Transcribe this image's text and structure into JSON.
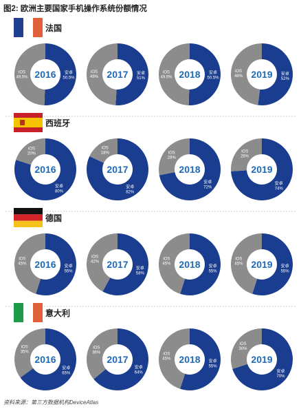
{
  "title": "图2: 欧洲主要国家手机操作系统份额情况",
  "source": "资料来源：第三方数据机构DeviceAtlas",
  "colors": {
    "android": "#1a3d8f",
    "ios": "#8c8c8c",
    "year_text": "#1e6ab8",
    "divider": "#bfbfbf"
  },
  "chart_data": [
    {
      "type": "pie",
      "country": "法国",
      "flag": "france",
      "years": [
        {
          "year": "2016",
          "ios_label": "iOS",
          "ios_pct": "49.5%",
          "android_label": "安卓",
          "android_pct": "50.5%",
          "android": 50.5
        },
        {
          "year": "2017",
          "ios_label": "iOS",
          "ios_pct": "49%",
          "android_label": "安卓",
          "android_pct": "51%",
          "android": 51
        },
        {
          "year": "2018",
          "ios_label": "iOS",
          "ios_pct": "49.5%",
          "android_label": "安卓",
          "android_pct": "50.5%",
          "android": 50.5
        },
        {
          "year": "2019",
          "ios_label": "iOS",
          "ios_pct": "48%",
          "android_label": "安卓",
          "android_pct": "52%",
          "android": 52
        }
      ]
    },
    {
      "type": "pie",
      "country": "西班牙",
      "flag": "spain",
      "years": [
        {
          "year": "2016",
          "ios_label": "iOS",
          "ios_pct": "20%",
          "android_label": "安卓",
          "android_pct": "80%",
          "android": 80
        },
        {
          "year": "2017",
          "ios_label": "iOS",
          "ios_pct": "18%",
          "android_label": "安卓",
          "android_pct": "82%",
          "android": 82
        },
        {
          "year": "2018",
          "ios_label": "iOS",
          "ios_pct": "28%",
          "android_label": "安卓",
          "android_pct": "72%",
          "android": 72
        },
        {
          "year": "2019",
          "ios_label": "iOS",
          "ios_pct": "26%",
          "android_label": "安卓",
          "android_pct": "74%",
          "android": 74
        }
      ]
    },
    {
      "type": "pie",
      "country": "德国",
      "flag": "germany",
      "years": [
        {
          "year": "2016",
          "ios_label": "iOS",
          "ios_pct": "45%",
          "android_label": "安卓",
          "android_pct": "55%",
          "android": 55
        },
        {
          "year": "2017",
          "ios_label": "iOS",
          "ios_pct": "42%",
          "android_label": "安卓",
          "android_pct": "58%",
          "android": 58
        },
        {
          "year": "2018",
          "ios_label": "iOS",
          "ios_pct": "45%",
          "android_label": "安卓",
          "android_pct": "55%",
          "android": 55
        },
        {
          "year": "2019",
          "ios_label": "iOS",
          "ios_pct": "45%",
          "android_label": "安卓",
          "android_pct": "55%",
          "android": 55
        }
      ]
    },
    {
      "type": "pie",
      "country": "意大利",
      "flag": "italy",
      "years": [
        {
          "year": "2016",
          "ios_label": "iOS",
          "ios_pct": "35%",
          "android_label": "安卓",
          "android_pct": "65%",
          "android": 65
        },
        {
          "year": "2017",
          "ios_label": "iOS",
          "ios_pct": "36%",
          "android_label": "安卓",
          "android_pct": "64%",
          "android": 64
        },
        {
          "year": "2018",
          "ios_label": "iOS",
          "ios_pct": "45%",
          "android_label": "安卓",
          "android_pct": "55%",
          "android": 55
        },
        {
          "year": "2019",
          "ios_label": "iOS",
          "ios_pct": "30%",
          "android_label": "安卓",
          "android_pct": "70%",
          "android": 70
        }
      ]
    }
  ]
}
